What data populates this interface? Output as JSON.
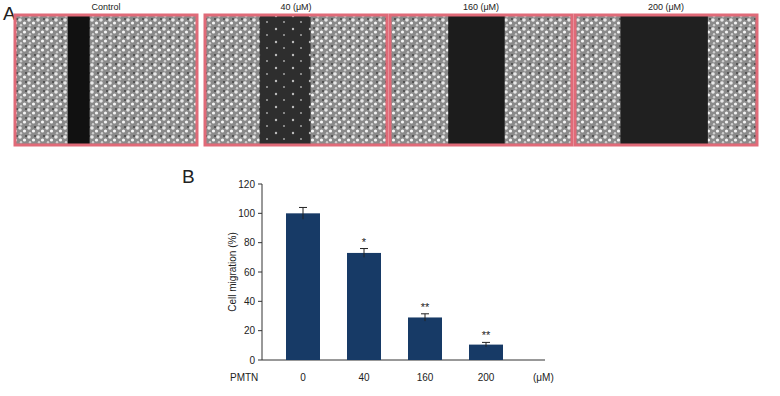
{
  "panels": [
    "A",
    "B"
  ],
  "images": [
    {
      "label": "Control"
    },
    {
      "label": "40 (μM)"
    },
    {
      "label": "160 (μM)"
    },
    {
      "label": "200 (μM)"
    }
  ],
  "chart_data": {
    "type": "bar",
    "y_label": "Cell migration (%)",
    "x_label": "PMTN",
    "x_unit": "(μM)",
    "categories": [
      "0",
      "40",
      "160",
      "200"
    ],
    "values": [
      100,
      73,
      29,
      10.5
    ],
    "errors": [
      4,
      3,
      2.5,
      1.5
    ],
    "significance": [
      null,
      "*",
      "**",
      "**"
    ],
    "color": "#173a66",
    "ylim": [
      0,
      120
    ],
    "yticks": [
      0,
      20,
      40,
      60,
      80,
      100,
      120
    ],
    "grid": false
  }
}
